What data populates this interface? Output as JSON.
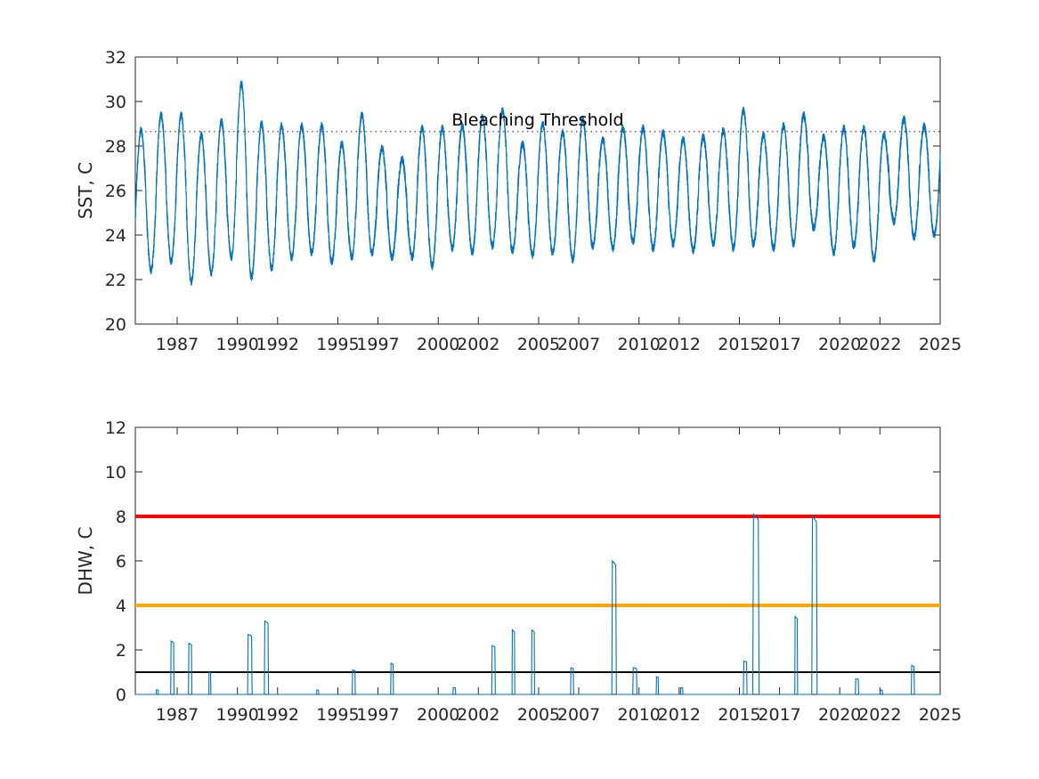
{
  "chart_data": [
    {
      "type": "line",
      "title": "",
      "xlabel": "",
      "ylabel": "SST, C",
      "xlim": [
        "1984-12-01",
        "2025-01-01"
      ],
      "ylim": [
        20,
        32
      ],
      "yticks": [
        "20",
        "22",
        "24",
        "26",
        "28",
        "30",
        "32"
      ],
      "xticks": [
        "1987",
        "1990",
        "1992",
        "1995",
        "1997",
        "2000",
        "2002",
        "2005",
        "2007",
        "2010",
        "2012",
        "2015",
        "2017",
        "2020",
        "2022",
        "2025"
      ],
      "threshold": {
        "label": "Bleaching Threshold",
        "value": 28.65,
        "color": "#7e2f8e",
        "style": "dotted"
      },
      "series": [
        {
          "color": "#0072bd",
          "seasonal_peaks": [
            {
              "year": 1985,
              "max": 28.7,
              "min": 22.4
            },
            {
              "year": 1986,
              "max": 29.4,
              "min": 22.8
            },
            {
              "year": 1987,
              "max": 29.4,
              "min": 21.9
            },
            {
              "year": 1988,
              "max": 28.5,
              "min": 22.3
            },
            {
              "year": 1989,
              "max": 29.1,
              "min": 23.0
            },
            {
              "year": 1990,
              "max": 30.8,
              "min": 22.1
            },
            {
              "year": 1991,
              "max": 29.0,
              "min": 22.5
            },
            {
              "year": 1992,
              "max": 28.9,
              "min": 23.0
            },
            {
              "year": 1993,
              "max": 28.9,
              "min": 23.2
            },
            {
              "year": 1994,
              "max": 28.9,
              "min": 22.8
            },
            {
              "year": 1995,
              "max": 28.1,
              "min": 23.0
            },
            {
              "year": 1996,
              "max": 29.4,
              "min": 23.2
            },
            {
              "year": 1997,
              "max": 27.9,
              "min": 23.0
            },
            {
              "year": 1998,
              "max": 27.4,
              "min": 23.0
            },
            {
              "year": 1999,
              "max": 28.8,
              "min": 22.6
            },
            {
              "year": 2000,
              "max": 28.8,
              "min": 23.4
            },
            {
              "year": 2001,
              "max": 28.9,
              "min": 23.2
            },
            {
              "year": 2002,
              "max": 29.3,
              "min": 23.5
            },
            {
              "year": 2003,
              "max": 29.6,
              "min": 23.3
            },
            {
              "year": 2004,
              "max": 28.1,
              "min": 23.1
            },
            {
              "year": 2005,
              "max": 29.0,
              "min": 23.2
            },
            {
              "year": 2006,
              "max": 28.6,
              "min": 22.9
            },
            {
              "year": 2007,
              "max": 29.2,
              "min": 23.5
            },
            {
              "year": 2008,
              "max": 28.3,
              "min": 23.4
            },
            {
              "year": 2009,
              "max": 28.8,
              "min": 23.7
            },
            {
              "year": 2010,
              "max": 28.8,
              "min": 23.4
            },
            {
              "year": 2011,
              "max": 28.6,
              "min": 23.6
            },
            {
              "year": 2012,
              "max": 28.3,
              "min": 23.3
            },
            {
              "year": 2013,
              "max": 28.4,
              "min": 23.6
            },
            {
              "year": 2014,
              "max": 28.7,
              "min": 23.4
            },
            {
              "year": 2015,
              "max": 29.6,
              "min": 23.6
            },
            {
              "year": 2016,
              "max": 28.5,
              "min": 23.4
            },
            {
              "year": 2017,
              "max": 28.9,
              "min": 23.6
            },
            {
              "year": 2018,
              "max": 29.4,
              "min": 24.3
            },
            {
              "year": 2019,
              "max": 28.4,
              "min": 23.2
            },
            {
              "year": 2020,
              "max": 28.8,
              "min": 23.5
            },
            {
              "year": 2021,
              "max": 28.8,
              "min": 22.9
            },
            {
              "year": 2022,
              "max": 28.5,
              "min": 24.6
            },
            {
              "year": 2023,
              "max": 29.2,
              "min": 23.9
            },
            {
              "year": 2024,
              "max": 28.9,
              "min": 24.0
            }
          ]
        }
      ]
    },
    {
      "type": "line",
      "title": "",
      "xlabel": "",
      "ylabel": "DHW, C",
      "xlim": [
        "1984-12-01",
        "2025-01-01"
      ],
      "ylim": [
        0,
        12
      ],
      "yticks": [
        "0",
        "2",
        "4",
        "6",
        "8",
        "10",
        "12"
      ],
      "xticks": [
        "1987",
        "1990",
        "1992",
        "1995",
        "1997",
        "2000",
        "2002",
        "2005",
        "2007",
        "2010",
        "2012",
        "2015",
        "2017",
        "2020",
        "2022",
        "2025"
      ],
      "reference_lines": [
        {
          "value": 8,
          "color": "#ff0000"
        },
        {
          "value": 4,
          "color": "#ffa500"
        },
        {
          "value": 1,
          "color": "#000000"
        }
      ],
      "series": [
        {
          "color": "#0072bd",
          "events": [
            {
              "start": "1985-12-15",
              "end": "1986-01-25",
              "peak": 0.2
            },
            {
              "start": "1986-09-05",
              "end": "1986-11-05",
              "peak": 2.4
            },
            {
              "start": "1987-07-25",
              "end": "1987-09-25",
              "peak": 2.3
            },
            {
              "start": "1988-07-30",
              "end": "1988-09-05",
              "peak": 1.0
            },
            {
              "start": "1990-07-05",
              "end": "1990-09-25",
              "peak": 2.7
            },
            {
              "start": "1991-05-05",
              "end": "1991-07-20",
              "peak": 3.3
            },
            {
              "start": "1993-12-10",
              "end": "1994-01-20",
              "peak": 0.2
            },
            {
              "start": "1995-09-20",
              "end": "1995-11-15",
              "peak": 1.1
            },
            {
              "start": "1997-08-20",
              "end": "1997-10-10",
              "peak": 1.4
            },
            {
              "start": "2000-09-25",
              "end": "2000-11-15",
              "peak": 0.3
            },
            {
              "start": "2002-09-01",
              "end": "2002-11-05",
              "peak": 2.2
            },
            {
              "start": "2003-09-05",
              "end": "2003-10-25",
              "peak": 2.9
            },
            {
              "start": "2004-08-25",
              "end": "2004-10-20",
              "peak": 2.9
            },
            {
              "start": "2006-08-05",
              "end": "2006-09-30",
              "peak": 1.2
            },
            {
              "start": "2008-08-25",
              "end": "2008-11-15",
              "peak": 6.0
            },
            {
              "start": "2009-09-10",
              "end": "2009-11-25",
              "peak": 1.2
            },
            {
              "start": "2010-11-10",
              "end": "2010-12-20",
              "peak": 0.8
            },
            {
              "start": "2012-01-25",
              "end": "2012-03-10",
              "peak": 0.3
            },
            {
              "start": "2015-03-15",
              "end": "2015-05-20",
              "peak": 1.5
            },
            {
              "start": "2015-09-01",
              "end": "2015-12-25",
              "peak": 8.1
            },
            {
              "start": "2017-10-05",
              "end": "2017-11-25",
              "peak": 3.5
            },
            {
              "start": "2018-08-10",
              "end": "2018-11-15",
              "peak": 8.0
            },
            {
              "start": "2020-10-10",
              "end": "2020-12-10",
              "peak": 0.7
            },
            {
              "start": "2022-01-05",
              "end": "2022-02-20",
              "peak": 0.2
            },
            {
              "start": "2023-07-25",
              "end": "2023-09-20",
              "peak": 1.3
            }
          ]
        }
      ]
    }
  ]
}
